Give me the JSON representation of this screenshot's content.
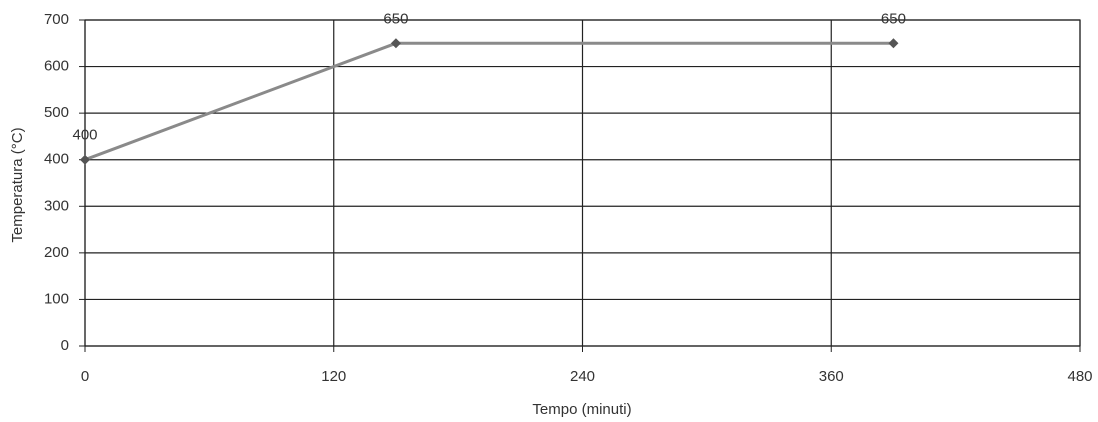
{
  "chart_data": {
    "type": "line",
    "x_label": "Tempo (minuti)",
    "y_label": "Temperatura (°C)",
    "x": [
      0,
      150,
      390
    ],
    "series": [
      {
        "values": [
          400,
          650,
          650
        ],
        "color": "#8a8a8a",
        "marker_color": "#555555"
      }
    ],
    "xlim": [
      0,
      480
    ],
    "xticks": [
      0,
      120,
      240,
      360,
      480
    ],
    "ylim": [
      0,
      700
    ],
    "yticks": [
      0,
      100,
      200,
      300,
      400,
      500,
      600,
      700
    ],
    "grid": true
  }
}
